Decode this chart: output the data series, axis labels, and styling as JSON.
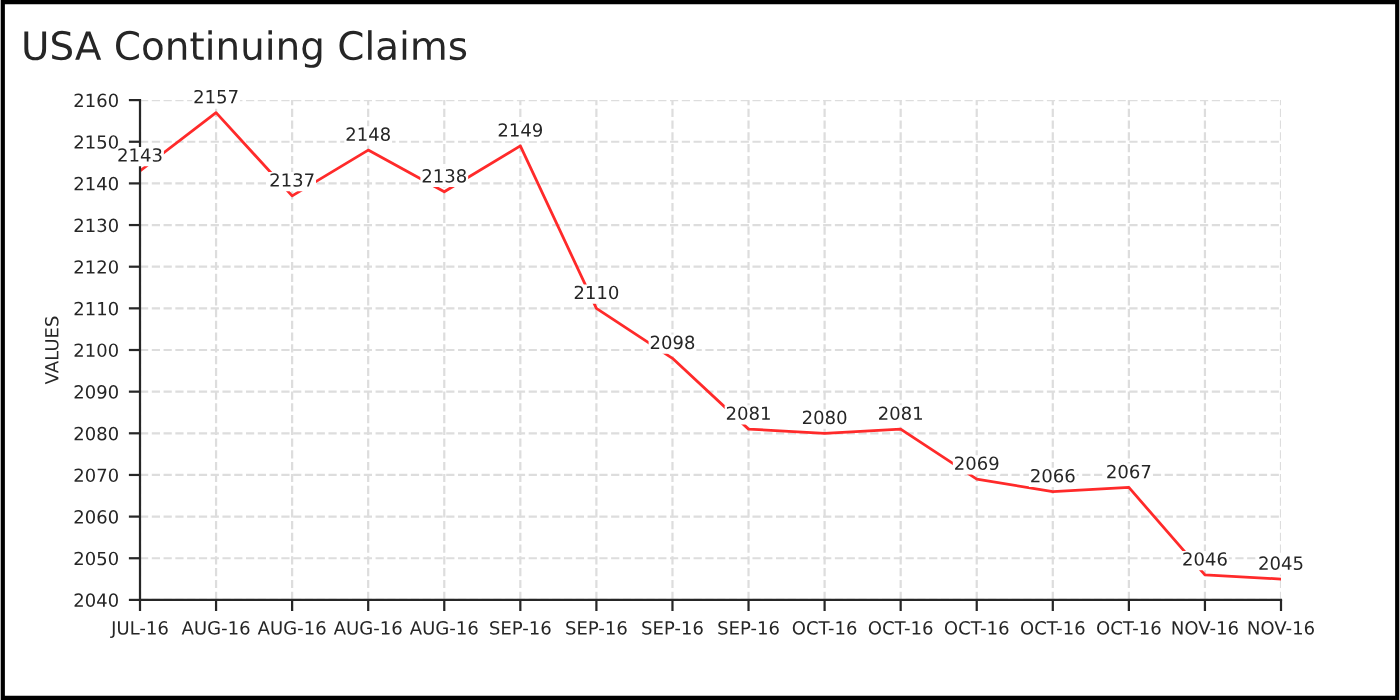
{
  "chart_data": {
    "type": "line",
    "title": "USA Continuing Claims",
    "ylabel": "VALUES",
    "categories": [
      "JUL-16",
      "AUG-16",
      "AUG-16",
      "AUG-16",
      "AUG-16",
      "SEP-16",
      "SEP-16",
      "SEP-16",
      "SEP-16",
      "OCT-16",
      "OCT-16",
      "OCT-16",
      "OCT-16",
      "OCT-16",
      "NOV-16",
      "NOV-16"
    ],
    "series": [
      {
        "color": "#ff2a2a",
        "values": [
          2143,
          2157,
          2137,
          2148,
          2138,
          2149,
          2110,
          2098,
          2081,
          2080,
          2081,
          2069,
          2066,
          2067,
          2046,
          2045
        ]
      }
    ],
    "ylim": [
      2040,
      2160
    ],
    "yticks": [
      2040,
      2050,
      2060,
      2070,
      2080,
      2090,
      2100,
      2110,
      2120,
      2130,
      2140,
      2150,
      2160
    ],
    "grid": true,
    "data_labels": true,
    "marker": "none",
    "line_style": "solid"
  }
}
